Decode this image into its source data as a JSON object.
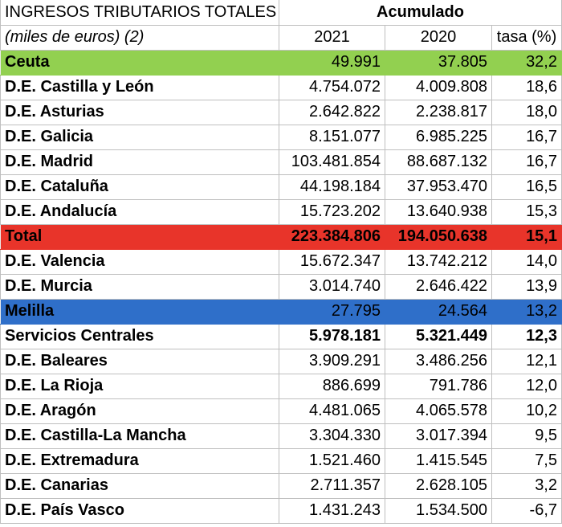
{
  "header": {
    "title": "INGRESOS TRIBUTARIOS TOTALES",
    "subtitle": "(miles de euros) (2)",
    "group": "Acumulado",
    "col_2021": "2021",
    "col_2020": "2020",
    "col_rate": "tasa (%)"
  },
  "rows": [
    {
      "name": "Ceuta",
      "v2021": "49.991",
      "v2020": "37.805",
      "rate": "32,2"
    },
    {
      "name": "D.E. Castilla y León",
      "v2021": "4.754.072",
      "v2020": "4.009.808",
      "rate": "18,6"
    },
    {
      "name": "D.E. Asturias",
      "v2021": "2.642.822",
      "v2020": "2.238.817",
      "rate": "18,0"
    },
    {
      "name": "D.E. Galicia",
      "v2021": "8.151.077",
      "v2020": "6.985.225",
      "rate": "16,7"
    },
    {
      "name": "D.E. Madrid",
      "v2021": "103.481.854",
      "v2020": "88.687.132",
      "rate": "16,7"
    },
    {
      "name": "D.E. Cataluña",
      "v2021": "44.198.184",
      "v2020": "37.953.470",
      "rate": "16,5"
    },
    {
      "name": "D.E. Andalucía",
      "v2021": "15.723.202",
      "v2020": "13.640.938",
      "rate": "15,3"
    },
    {
      "name": "Total",
      "v2021": "223.384.806",
      "v2020": "194.050.638",
      "rate": "15,1"
    },
    {
      "name": "D.E. Valencia",
      "v2021": "15.672.347",
      "v2020": "13.742.212",
      "rate": "14,0"
    },
    {
      "name": "D.E. Murcia",
      "v2021": "3.014.740",
      "v2020": "2.646.422",
      "rate": "13,9"
    },
    {
      "name": "Melilla",
      "v2021": "27.795",
      "v2020": "24.564",
      "rate": "13,2"
    },
    {
      "name": "Servicios Centrales",
      "v2021": "5.978.181",
      "v2020": "5.321.449",
      "rate": "12,3"
    },
    {
      "name": "D.E. Baleares",
      "v2021": "3.909.291",
      "v2020": "3.486.256",
      "rate": "12,1"
    },
    {
      "name": "D.E. La Rioja",
      "v2021": "886.699",
      "v2020": "791.786",
      "rate": "12,0"
    },
    {
      "name": "D.E. Aragón",
      "v2021": "4.481.065",
      "v2020": "4.065.578",
      "rate": "10,2"
    },
    {
      "name": "D.E. Castilla-La Mancha",
      "v2021": "3.304.330",
      "v2020": "3.017.394",
      "rate": "9,5"
    },
    {
      "name": "D.E. Extremadura",
      "v2021": "1.521.460",
      "v2020": "1.415.545",
      "rate": "7,5"
    },
    {
      "name": "D.E. Canarias",
      "v2021": "2.711.357",
      "v2020": "2.628.105",
      "rate": "3,2"
    },
    {
      "name": "D.E. País Vasco",
      "v2021": "1.431.243",
      "v2020": "1.534.500",
      "rate": "-6,7"
    }
  ],
  "colors": {
    "ceuta": "#92d050",
    "total": "#e8342a",
    "melilla": "#2f6fc9"
  }
}
